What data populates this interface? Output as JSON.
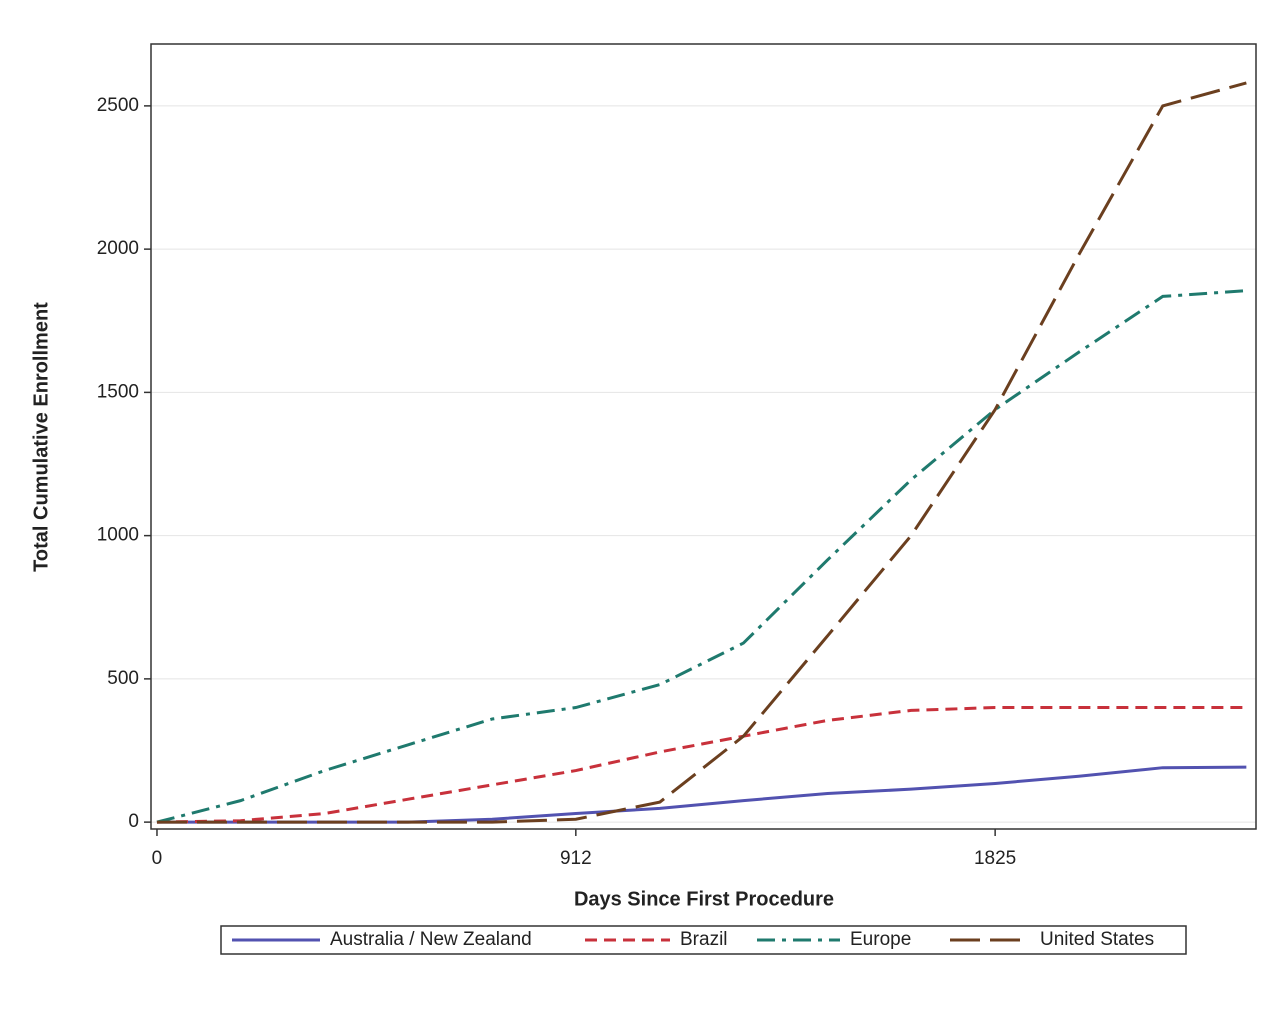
{
  "chart_data": {
    "type": "line",
    "xlabel": "Days Since First Procedure",
    "ylabel": "Total Cumulative Enrollment",
    "x": [
      0,
      182,
      365,
      547,
      730,
      912,
      1095,
      1277,
      1460,
      1642,
      1825,
      2007,
      2190,
      2372
    ],
    "series": [
      {
        "name": "Australia / New Zealand",
        "color": "#5252b0",
        "values": [
          0,
          0,
          0,
          0,
          10,
          30,
          48,
          75,
          100,
          115,
          135,
          160,
          190,
          192
        ]
      },
      {
        "name": "Brazil",
        "color": "#c8313b",
        "values": [
          0,
          5,
          30,
          80,
          130,
          180,
          245,
          300,
          355,
          390,
          400,
          400,
          400,
          400
        ]
      },
      {
        "name": "Europe",
        "color": "#1f7a6e",
        "values": [
          0,
          75,
          180,
          270,
          360,
          400,
          480,
          625,
          915,
          1195,
          1440,
          1640,
          1835,
          1855
        ]
      },
      {
        "name": "United States",
        "color": "#6b3f1f",
        "values": [
          0,
          0,
          0,
          0,
          0,
          10,
          70,
          300,
          650,
          1000,
          1440,
          1980,
          2500,
          2580
        ]
      }
    ],
    "xlim": [
      -13,
      2393
    ],
    "xticks": [
      0,
      912,
      1825
    ],
    "ylim": [
      -24,
      2716
    ],
    "yticks": [
      0,
      500,
      1000,
      1500,
      2000,
      2500
    ],
    "grid": true,
    "legend": "bottom"
  }
}
